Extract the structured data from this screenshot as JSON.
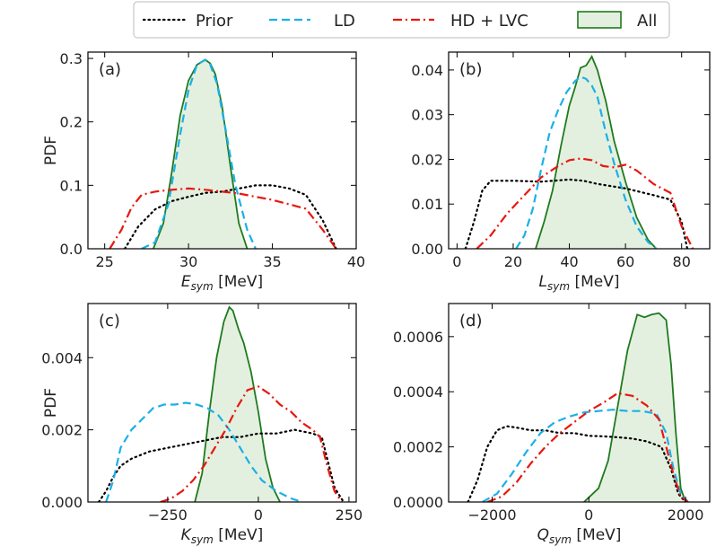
{
  "legend": {
    "placement": "top-center",
    "entries": [
      {
        "label": "Prior",
        "style": "dotted",
        "color": "#000000"
      },
      {
        "label": "LD",
        "style": "dashed",
        "color": "#1ab0e8"
      },
      {
        "label": "HD + LVC",
        "style": "dashdot",
        "color": "#e8170f"
      },
      {
        "label": "All",
        "style": "filled",
        "color": "#1f7a1f",
        "fill": "#e4f0df"
      }
    ]
  },
  "chart_data": [
    {
      "type": "line",
      "panel": "(a)",
      "xlabel_main": "E",
      "xlabel_sub": "sym",
      "xlabel_unit": " [MeV]",
      "ylabel": "PDF",
      "xlim": [
        24,
        40
      ],
      "ylim": [
        0,
        0.31
      ],
      "xticks": [
        25,
        30,
        35,
        40
      ],
      "xtick_labels": [
        "25",
        "30",
        "35",
        "40"
      ],
      "yticks": [
        0,
        0.1,
        0.2,
        0.3
      ],
      "ytick_labels": [
        "0.0",
        "0.1",
        "0.2",
        "0.3"
      ],
      "series": [
        {
          "name": "Prior",
          "x": [
            26.2,
            27,
            28,
            29,
            30,
            31,
            32,
            33,
            34,
            35,
            36,
            37,
            38,
            38.8
          ],
          "y": [
            0,
            0.035,
            0.062,
            0.075,
            0.082,
            0.088,
            0.09,
            0.095,
            0.1,
            0.1,
            0.095,
            0.085,
            0.045,
            0
          ]
        },
        {
          "name": "LD",
          "x": [
            27.2,
            28,
            28.8,
            29.5,
            30,
            30.5,
            31,
            31.3,
            31.7,
            32.2,
            32.8,
            33.5,
            34
          ],
          "y": [
            0,
            0.01,
            0.07,
            0.18,
            0.25,
            0.29,
            0.298,
            0.29,
            0.26,
            0.19,
            0.1,
            0.03,
            0
          ]
        },
        {
          "name": "HD + LVC",
          "x": [
            25.3,
            26,
            26.6,
            27.2,
            28,
            29,
            30,
            31,
            32,
            33,
            34,
            35,
            36,
            37,
            38,
            38.8
          ],
          "y": [
            0,
            0.03,
            0.065,
            0.085,
            0.09,
            0.093,
            0.095,
            0.093,
            0.09,
            0.087,
            0.082,
            0.077,
            0.07,
            0.063,
            0.03,
            0
          ]
        },
        {
          "name": "All",
          "x": [
            27.9,
            28.5,
            29,
            29.5,
            30,
            30.5,
            31,
            31.3,
            31.6,
            32,
            32.5,
            33,
            33.5
          ],
          "y": [
            0,
            0.04,
            0.12,
            0.21,
            0.265,
            0.29,
            0.298,
            0.292,
            0.275,
            0.225,
            0.13,
            0.04,
            0
          ]
        }
      ]
    },
    {
      "type": "line",
      "panel": "(b)",
      "xlabel_main": "L",
      "xlabel_sub": "sym",
      "xlabel_unit": " [MeV]",
      "ylabel": "",
      "xlim": [
        -3,
        90
      ],
      "ylim": [
        0,
        0.044
      ],
      "xticks": [
        0,
        20,
        40,
        60,
        80
      ],
      "xtick_labels": [
        "0",
        "20",
        "40",
        "60",
        "80"
      ],
      "yticks": [
        0,
        0.01,
        0.02,
        0.03,
        0.04
      ],
      "ytick_labels": [
        "0.00",
        "0.01",
        "0.02",
        "0.03",
        "0.04"
      ],
      "series": [
        {
          "name": "Prior",
          "x": [
            3,
            6,
            9,
            12,
            20,
            30,
            40,
            45,
            50,
            60,
            70,
            76,
            80,
            82
          ],
          "y": [
            0,
            0.006,
            0.013,
            0.0152,
            0.0152,
            0.015,
            0.0155,
            0.0152,
            0.0145,
            0.0135,
            0.012,
            0.011,
            0.006,
            0
          ]
        },
        {
          "name": "LD",
          "x": [
            21,
            24,
            27,
            30,
            33,
            36,
            39,
            42,
            44,
            46,
            48,
            50,
            53,
            56,
            60,
            64,
            68,
            71
          ],
          "y": [
            0,
            0.003,
            0.009,
            0.018,
            0.026,
            0.031,
            0.035,
            0.0375,
            0.0385,
            0.038,
            0.0365,
            0.034,
            0.026,
            0.019,
            0.011,
            0.005,
            0.0015,
            0
          ]
        },
        {
          "name": "HD + LVC",
          "x": [
            7,
            12,
            18,
            24,
            30,
            36,
            40,
            44,
            48,
            52,
            56,
            60,
            64,
            70,
            76,
            80,
            84
          ],
          "y": [
            0,
            0.003,
            0.008,
            0.012,
            0.016,
            0.0185,
            0.0198,
            0.0202,
            0.0198,
            0.0185,
            0.0182,
            0.0188,
            0.0175,
            0.0145,
            0.0125,
            0.005,
            0
          ]
        },
        {
          "name": "All",
          "x": [
            28,
            31,
            34,
            37,
            40,
            42,
            44,
            46,
            48,
            50,
            53,
            56,
            60,
            64,
            68,
            71
          ],
          "y": [
            0,
            0.006,
            0.013,
            0.023,
            0.032,
            0.036,
            0.0405,
            0.041,
            0.043,
            0.04,
            0.033,
            0.024,
            0.015,
            0.007,
            0.002,
            0
          ]
        }
      ]
    },
    {
      "type": "line",
      "panel": "(c)",
      "xlabel_main": "K",
      "xlabel_sub": "sym",
      "xlabel_unit": " [MeV]",
      "ylabel": "PDF",
      "xlim": [
        -470,
        270
      ],
      "ylim": [
        0,
        0.0055
      ],
      "xticks": [
        -250,
        0,
        250
      ],
      "xtick_labels": [
        "−250",
        "0",
        "250"
      ],
      "yticks": [
        0,
        0.002,
        0.004
      ],
      "ytick_labels": [
        "0.000",
        "0.002",
        "0.004"
      ],
      "series": [
        {
          "name": "Prior",
          "x": [
            -440,
            -420,
            -400,
            -380,
            -350,
            -300,
            -250,
            -200,
            -150,
            -100,
            -50,
            0,
            50,
            100,
            150,
            175,
            190,
            210,
            235
          ],
          "y": [
            0,
            0.0003,
            0.0007,
            0.001,
            0.0012,
            0.0014,
            0.0015,
            0.0016,
            0.0017,
            0.0018,
            0.0018,
            0.0019,
            0.0019,
            0.002,
            0.0019,
            0.0018,
            0.0012,
            0.0004,
            0
          ]
        },
        {
          "name": "LD",
          "x": [
            -420,
            -400,
            -380,
            -350,
            -320,
            -290,
            -260,
            -230,
            -200,
            -170,
            -140,
            -110,
            -80,
            -50,
            -20,
            10,
            50,
            90,
            120
          ],
          "y": [
            0,
            0.0006,
            0.0015,
            0.002,
            0.0023,
            0.0026,
            0.0027,
            0.0027,
            0.00275,
            0.0027,
            0.0026,
            0.0024,
            0.002,
            0.0015,
            0.001,
            0.0006,
            0.0003,
            0.0001,
            0
          ]
        },
        {
          "name": "HD + LVC",
          "x": [
            -270,
            -240,
            -210,
            -180,
            -150,
            -120,
            -90,
            -60,
            -30,
            0,
            30,
            60,
            90,
            120,
            150,
            170,
            190,
            210,
            230
          ],
          "y": [
            0,
            0.0001,
            0.0003,
            0.0006,
            0.001,
            0.0015,
            0.002,
            0.0026,
            0.0031,
            0.0032,
            0.003,
            0.0027,
            0.0025,
            0.0022,
            0.002,
            0.0018,
            0.001,
            0.0003,
            0
          ]
        },
        {
          "name": "All",
          "x": [
            -175,
            -155,
            -135,
            -115,
            -95,
            -80,
            -70,
            -55,
            -40,
            -20,
            0,
            20,
            40,
            60
          ],
          "y": [
            0,
            0.0008,
            0.0025,
            0.004,
            0.005,
            0.0054,
            0.0053,
            0.0048,
            0.0044,
            0.0036,
            0.0025,
            0.0012,
            0.0004,
            0
          ]
        }
      ]
    },
    {
      "type": "line",
      "panel": "(d)",
      "xlabel_main": "Q",
      "xlabel_sub": "sym",
      "xlabel_unit": " [MeV]",
      "ylabel": "",
      "xlim": [
        -2900,
        2500
      ],
      "ylim": [
        0,
        0.00072
      ],
      "xticks": [
        -2000,
        0,
        2000
      ],
      "xtick_labels": [
        "−2000",
        "0",
        "2000"
      ],
      "yticks": [
        0,
        0.0002,
        0.0004,
        0.0006
      ],
      "ytick_labels": [
        "0.0000",
        "0.0002",
        "0.0004",
        "0.0006"
      ],
      "series": [
        {
          "name": "Prior",
          "x": [
            -2500,
            -2300,
            -2100,
            -1900,
            -1700,
            -1500,
            -1200,
            -900,
            -600,
            -300,
            0,
            300,
            600,
            900,
            1200,
            1500,
            1700,
            1850,
            2000
          ],
          "y": [
            0,
            8e-05,
            0.0002,
            0.00026,
            0.000275,
            0.00027,
            0.00026,
            0.00026,
            0.00025,
            0.00025,
            0.00024,
            0.000238,
            0.000235,
            0.00023,
            0.00022,
            0.0002,
            0.00012,
            3e-05,
            0
          ]
        },
        {
          "name": "LD",
          "x": [
            -2200,
            -1900,
            -1600,
            -1300,
            -1000,
            -700,
            -400,
            -100,
            200,
            500,
            800,
            1100,
            1400,
            1600,
            1750,
            1900,
            2050
          ],
          "y": [
            0,
            3e-05,
            0.0001,
            0.00018,
            0.00025,
            0.00029,
            0.00031,
            0.000325,
            0.00033,
            0.000335,
            0.00033,
            0.00033,
            0.00032,
            0.00025,
            0.00012,
            3e-05,
            0
          ]
        },
        {
          "name": "HD + LVC",
          "x": [
            -2100,
            -1800,
            -1500,
            -1200,
            -900,
            -600,
            -300,
            0,
            300,
            600,
            900,
            1200,
            1450,
            1600,
            1750,
            1900,
            2050
          ],
          "y": [
            0,
            2e-05,
            7e-05,
            0.00014,
            0.0002,
            0.00025,
            0.00029,
            0.00033,
            0.00036,
            0.000395,
            0.000385,
            0.00035,
            0.0003,
            0.0002,
            0.0001,
            2e-05,
            0
          ]
        },
        {
          "name": "All",
          "x": [
            -100,
            200,
            400,
            600,
            800,
            1000,
            1150,
            1300,
            1450,
            1600,
            1700,
            1800,
            1900,
            2000
          ],
          "y": [
            0,
            5e-05,
            0.00015,
            0.00035,
            0.00055,
            0.00068,
            0.00067,
            0.00068,
            0.000685,
            0.00066,
            0.0005,
            0.00025,
            5e-05,
            0
          ]
        }
      ]
    }
  ]
}
